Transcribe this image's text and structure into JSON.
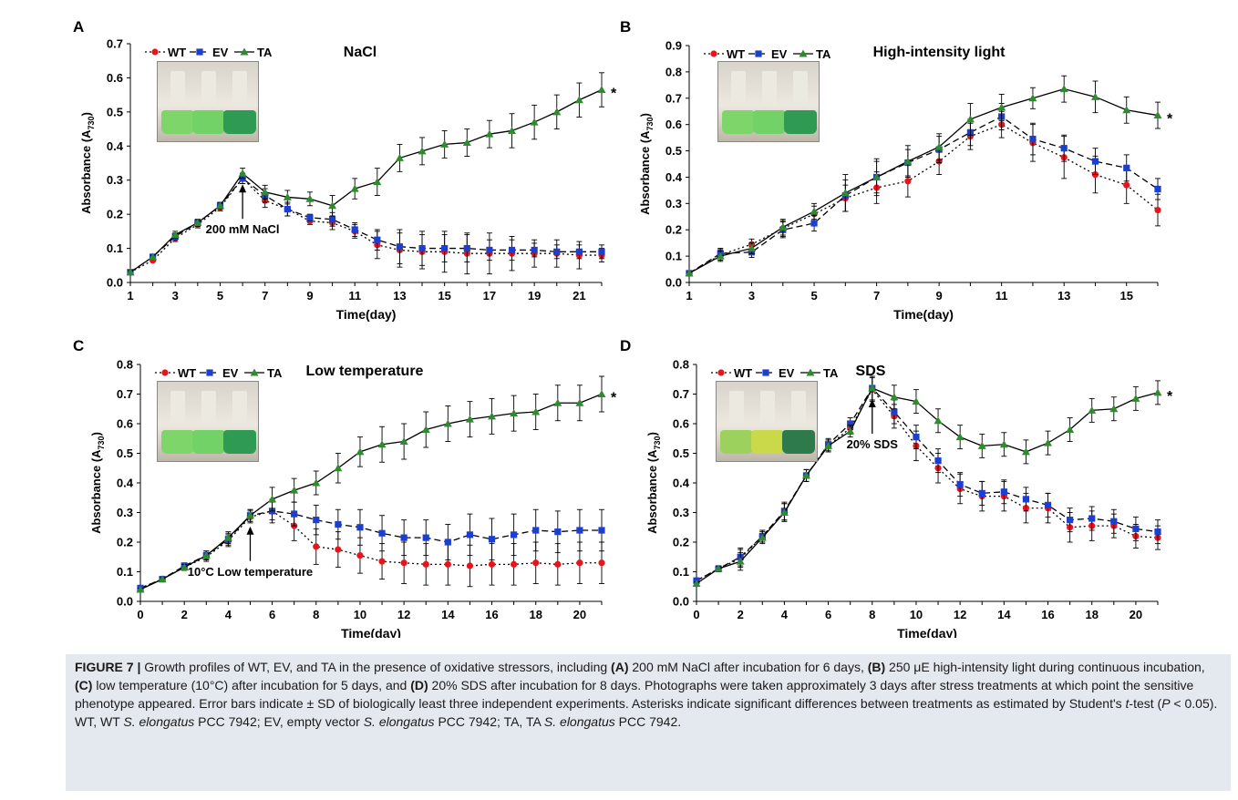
{
  "figure_label": "FIGURE 7 |",
  "caption_segments": [
    {
      "t": "Growth profiles of WT, EV, and TA in the presence of oxidative stressors, including ",
      "b": false,
      "i": false
    },
    {
      "t": "(A)",
      "b": true,
      "i": false
    },
    {
      "t": " 200 mM NaCl after incubation for 6 days, ",
      "b": false,
      "i": false
    },
    {
      "t": "(B)",
      "b": true,
      "i": false
    },
    {
      "t": " 250 μE high-intensity light during continuous incubation, ",
      "b": false,
      "i": false
    },
    {
      "t": "(C)",
      "b": true,
      "i": false
    },
    {
      "t": " low temperature (10°C) after incubation for 5 days, and ",
      "b": false,
      "i": false
    },
    {
      "t": "(D)",
      "b": true,
      "i": false
    },
    {
      "t": " 20% SDS after incubation for 8 days. Photographs were taken approximately 3 days after stress treatments at which point the sensitive phenotype appeared. Error bars indicate ± SD of biologically least three independent experiments. Asterisks indicate significant differences between treatments as estimated by Student's ",
      "b": false,
      "i": false
    },
    {
      "t": "t",
      "b": false,
      "i": true
    },
    {
      "t": "-test (",
      "b": false,
      "i": false
    },
    {
      "t": "P",
      "b": false,
      "i": true
    },
    {
      "t": " < 0.05). WT, WT ",
      "b": false,
      "i": false
    },
    {
      "t": "S. elongatus",
      "b": false,
      "i": true
    },
    {
      "t": " PCC 7942; EV, empty vector ",
      "b": false,
      "i": false
    },
    {
      "t": "S. elongatus",
      "b": false,
      "i": true
    },
    {
      "t": " PCC 7942; TA, TA ",
      "b": false,
      "i": false
    },
    {
      "t": "S. elongatus",
      "b": false,
      "i": true
    },
    {
      "t": " PCC 7942.",
      "b": false,
      "i": false
    }
  ],
  "colors": {
    "WT": "#e8141b",
    "EV": "#1d3fcf",
    "TA": "#2e8b2e",
    "axis": "#000000",
    "caption_bg": "#e4e8ef"
  },
  "chart_data": [
    {
      "panel": "A",
      "type": "line",
      "title": "NaCl",
      "xlabel": "Time(day)",
      "ylabel": "Absorbance (A730)",
      "xlim": [
        1,
        22
      ],
      "ylim": [
        0,
        0.7
      ],
      "yticks_decimals": 1,
      "ystep": 0.1,
      "xticks": [
        1,
        3,
        5,
        7,
        9,
        11,
        13,
        15,
        17,
        19,
        21
      ],
      "legend": [
        "WT",
        "EV",
        "TA"
      ],
      "legend_position": "top-left",
      "annotation": "200 mM NaCl",
      "annotation_x": 6,
      "asterisk": "*",
      "x": [
        1,
        2,
        3,
        4,
        5,
        6,
        7,
        8,
        9,
        10,
        11,
        12,
        13,
        14,
        15,
        16,
        17,
        18,
        19,
        20,
        21,
        22
      ],
      "series": [
        {
          "name": "WT",
          "values": [
            0.03,
            0.065,
            0.13,
            0.17,
            0.22,
            0.305,
            0.24,
            0.215,
            0.18,
            0.175,
            0.15,
            0.11,
            0.095,
            0.09,
            0.09,
            0.085,
            0.085,
            0.085,
            0.085,
            0.085,
            0.08,
            0.08
          ],
          "err": [
            0.005,
            0.005,
            0.01,
            0.01,
            0.01,
            0.015,
            0.02,
            0.02,
            0.01,
            0.02,
            0.02,
            0.04,
            0.05,
            0.05,
            0.06,
            0.06,
            0.06,
            0.05,
            0.04,
            0.04,
            0.04,
            0.02
          ]
        },
        {
          "name": "EV",
          "values": [
            0.03,
            0.075,
            0.135,
            0.175,
            0.225,
            0.305,
            0.255,
            0.215,
            0.19,
            0.185,
            0.155,
            0.125,
            0.105,
            0.1,
            0.1,
            0.1,
            0.095,
            0.095,
            0.095,
            0.09,
            0.09,
            0.09
          ],
          "err": [
            0.005,
            0.005,
            0.01,
            0.01,
            0.01,
            0.015,
            0.02,
            0.02,
            0.01,
            0.02,
            0.02,
            0.03,
            0.05,
            0.05,
            0.04,
            0.04,
            0.03,
            0.03,
            0.02,
            0.02,
            0.02,
            0.02
          ]
        },
        {
          "name": "TA",
          "values": [
            0.03,
            0.075,
            0.14,
            0.175,
            0.225,
            0.32,
            0.265,
            0.25,
            0.245,
            0.225,
            0.275,
            0.295,
            0.365,
            0.385,
            0.405,
            0.41,
            0.435,
            0.445,
            0.47,
            0.5,
            0.535,
            0.565
          ],
          "err": [
            0.005,
            0.005,
            0.01,
            0.01,
            0.01,
            0.015,
            0.02,
            0.02,
            0.02,
            0.03,
            0.03,
            0.04,
            0.04,
            0.04,
            0.04,
            0.04,
            0.04,
            0.05,
            0.05,
            0.05,
            0.05,
            0.05
          ]
        }
      ]
    },
    {
      "panel": "B",
      "type": "line",
      "title": "High-intensity light",
      "xlabel": "Time(day)",
      "ylabel": "Absorbance (A730)",
      "xlim": [
        1,
        16
      ],
      "ylim": [
        0,
        0.9
      ],
      "yticks_decimals": 1,
      "ystep": 0.1,
      "xticks": [
        1,
        3,
        5,
        7,
        9,
        11,
        13,
        15
      ],
      "legend": [
        "WT",
        "EV",
        "TA"
      ],
      "legend_position": "top-left",
      "annotation": "",
      "annotation_x": null,
      "asterisk": "*",
      "x": [
        1,
        2,
        3,
        4,
        5,
        6,
        7,
        8,
        9,
        10,
        11,
        12,
        13,
        14,
        15,
        16
      ],
      "series": [
        {
          "name": "WT",
          "values": [
            0.035,
            0.105,
            0.145,
            0.205,
            0.26,
            0.32,
            0.36,
            0.385,
            0.46,
            0.555,
            0.6,
            0.53,
            0.475,
            0.41,
            0.37,
            0.275
          ],
          "err": [
            0.005,
            0.02,
            0.02,
            0.03,
            0.03,
            0.05,
            0.06,
            0.06,
            0.05,
            0.05,
            0.05,
            0.07,
            0.08,
            0.07,
            0.07,
            0.06
          ]
        },
        {
          "name": "EV",
          "values": [
            0.035,
            0.11,
            0.115,
            0.2,
            0.225,
            0.33,
            0.4,
            0.455,
            0.505,
            0.57,
            0.63,
            0.545,
            0.51,
            0.46,
            0.435,
            0.355
          ],
          "err": [
            0.005,
            0.02,
            0.02,
            0.03,
            0.03,
            0.06,
            0.06,
            0.05,
            0.05,
            0.05,
            0.05,
            0.06,
            0.05,
            0.05,
            0.05,
            0.04
          ]
        },
        {
          "name": "TA",
          "values": [
            0.035,
            0.1,
            0.13,
            0.21,
            0.27,
            0.34,
            0.4,
            0.46,
            0.515,
            0.62,
            0.665,
            0.7,
            0.735,
            0.705,
            0.655,
            0.635
          ],
          "err": [
            0.005,
            0.02,
            0.02,
            0.03,
            0.03,
            0.07,
            0.07,
            0.06,
            0.05,
            0.06,
            0.05,
            0.04,
            0.05,
            0.06,
            0.05,
            0.05
          ]
        }
      ]
    },
    {
      "panel": "C",
      "type": "line",
      "title": "Low temperature",
      "xlabel": "Time(day)",
      "ylabel": "Absorbance (A730)",
      "xlim": [
        0,
        21
      ],
      "ylim": [
        0,
        0.8
      ],
      "yticks_decimals": 1,
      "ystep": 0.1,
      "xticks": [
        0,
        2,
        4,
        6,
        8,
        10,
        12,
        14,
        16,
        18,
        20
      ],
      "legend": [
        "WT",
        "EV",
        "TA"
      ],
      "legend_position": "top-left",
      "annotation": "10°C Low temperature",
      "annotation_x": 5,
      "asterisk": "*",
      "x": [
        0,
        1,
        2,
        3,
        4,
        5,
        6,
        7,
        8,
        9,
        10,
        11,
        12,
        13,
        14,
        15,
        16,
        17,
        18,
        19,
        20,
        21
      ],
      "series": [
        {
          "name": "WT",
          "values": [
            0.045,
            0.075,
            0.115,
            0.15,
            0.205,
            0.285,
            0.305,
            0.255,
            0.185,
            0.175,
            0.155,
            0.135,
            0.13,
            0.125,
            0.125,
            0.12,
            0.125,
            0.125,
            0.13,
            0.125,
            0.13,
            0.13
          ],
          "err": [
            0.005,
            0.005,
            0.01,
            0.015,
            0.02,
            0.02,
            0.03,
            0.05,
            0.06,
            0.06,
            0.06,
            0.06,
            0.07,
            0.07,
            0.07,
            0.07,
            0.07,
            0.07,
            0.07,
            0.07,
            0.07,
            0.07
          ]
        },
        {
          "name": "EV",
          "values": [
            0.045,
            0.075,
            0.12,
            0.155,
            0.21,
            0.29,
            0.305,
            0.295,
            0.275,
            0.26,
            0.25,
            0.23,
            0.215,
            0.215,
            0.2,
            0.225,
            0.21,
            0.225,
            0.24,
            0.235,
            0.24,
            0.24
          ],
          "err": [
            0.005,
            0.005,
            0.01,
            0.015,
            0.02,
            0.02,
            0.04,
            0.04,
            0.05,
            0.05,
            0.06,
            0.06,
            0.06,
            0.06,
            0.06,
            0.07,
            0.07,
            0.07,
            0.07,
            0.07,
            0.07,
            0.07
          ]
        },
        {
          "name": "TA",
          "values": [
            0.04,
            0.075,
            0.115,
            0.155,
            0.215,
            0.29,
            0.345,
            0.375,
            0.4,
            0.45,
            0.505,
            0.53,
            0.54,
            0.58,
            0.6,
            0.615,
            0.625,
            0.635,
            0.64,
            0.67,
            0.67,
            0.7
          ],
          "err": [
            0.005,
            0.005,
            0.01,
            0.015,
            0.02,
            0.02,
            0.04,
            0.04,
            0.04,
            0.05,
            0.05,
            0.06,
            0.06,
            0.06,
            0.06,
            0.06,
            0.06,
            0.06,
            0.06,
            0.06,
            0.06,
            0.06
          ]
        }
      ]
    },
    {
      "panel": "D",
      "type": "line",
      "title": "SDS",
      "xlabel": "Time(day)",
      "ylabel": "Absorbance (A730)",
      "xlim": [
        0,
        21
      ],
      "ylim": [
        0,
        0.8
      ],
      "yticks_decimals": 1,
      "ystep": 0.1,
      "xticks": [
        0,
        2,
        4,
        6,
        8,
        10,
        12,
        14,
        16,
        18,
        20
      ],
      "legend": [
        "WT",
        "EV",
        "TA"
      ],
      "legend_position": "top-left",
      "annotation": "20% SDS",
      "annotation_x": 8,
      "asterisk": "*",
      "x": [
        0,
        1,
        2,
        3,
        4,
        5,
        6,
        7,
        8,
        9,
        10,
        11,
        12,
        13,
        14,
        15,
        16,
        17,
        18,
        19,
        20,
        21
      ],
      "series": [
        {
          "name": "WT",
          "values": [
            0.07,
            0.11,
            0.145,
            0.22,
            0.3,
            0.425,
            0.525,
            0.585,
            0.715,
            0.625,
            0.525,
            0.45,
            0.38,
            0.355,
            0.355,
            0.315,
            0.315,
            0.25,
            0.255,
            0.255,
            0.22,
            0.215
          ],
          "err": [
            0.005,
            0.01,
            0.03,
            0.02,
            0.03,
            0.02,
            0.02,
            0.02,
            0.04,
            0.04,
            0.05,
            0.05,
            0.05,
            0.05,
            0.05,
            0.05,
            0.05,
            0.05,
            0.05,
            0.04,
            0.04,
            0.04
          ]
        },
        {
          "name": "EV",
          "values": [
            0.07,
            0.11,
            0.15,
            0.22,
            0.305,
            0.425,
            0.53,
            0.6,
            0.72,
            0.64,
            0.555,
            0.475,
            0.395,
            0.365,
            0.37,
            0.345,
            0.325,
            0.275,
            0.28,
            0.27,
            0.245,
            0.235
          ],
          "err": [
            0.005,
            0.01,
            0.03,
            0.02,
            0.03,
            0.02,
            0.02,
            0.02,
            0.04,
            0.04,
            0.04,
            0.04,
            0.04,
            0.04,
            0.04,
            0.04,
            0.04,
            0.04,
            0.04,
            0.04,
            0.04,
            0.04
          ]
        },
        {
          "name": "TA",
          "values": [
            0.06,
            0.11,
            0.135,
            0.215,
            0.3,
            0.425,
            0.525,
            0.575,
            0.72,
            0.69,
            0.675,
            0.61,
            0.555,
            0.525,
            0.53,
            0.505,
            0.535,
            0.58,
            0.645,
            0.65,
            0.685,
            0.705
          ],
          "err": [
            0.005,
            0.01,
            0.03,
            0.02,
            0.03,
            0.02,
            0.02,
            0.02,
            0.04,
            0.04,
            0.04,
            0.04,
            0.04,
            0.04,
            0.04,
            0.04,
            0.04,
            0.04,
            0.04,
            0.04,
            0.04,
            0.04
          ]
        }
      ]
    }
  ]
}
